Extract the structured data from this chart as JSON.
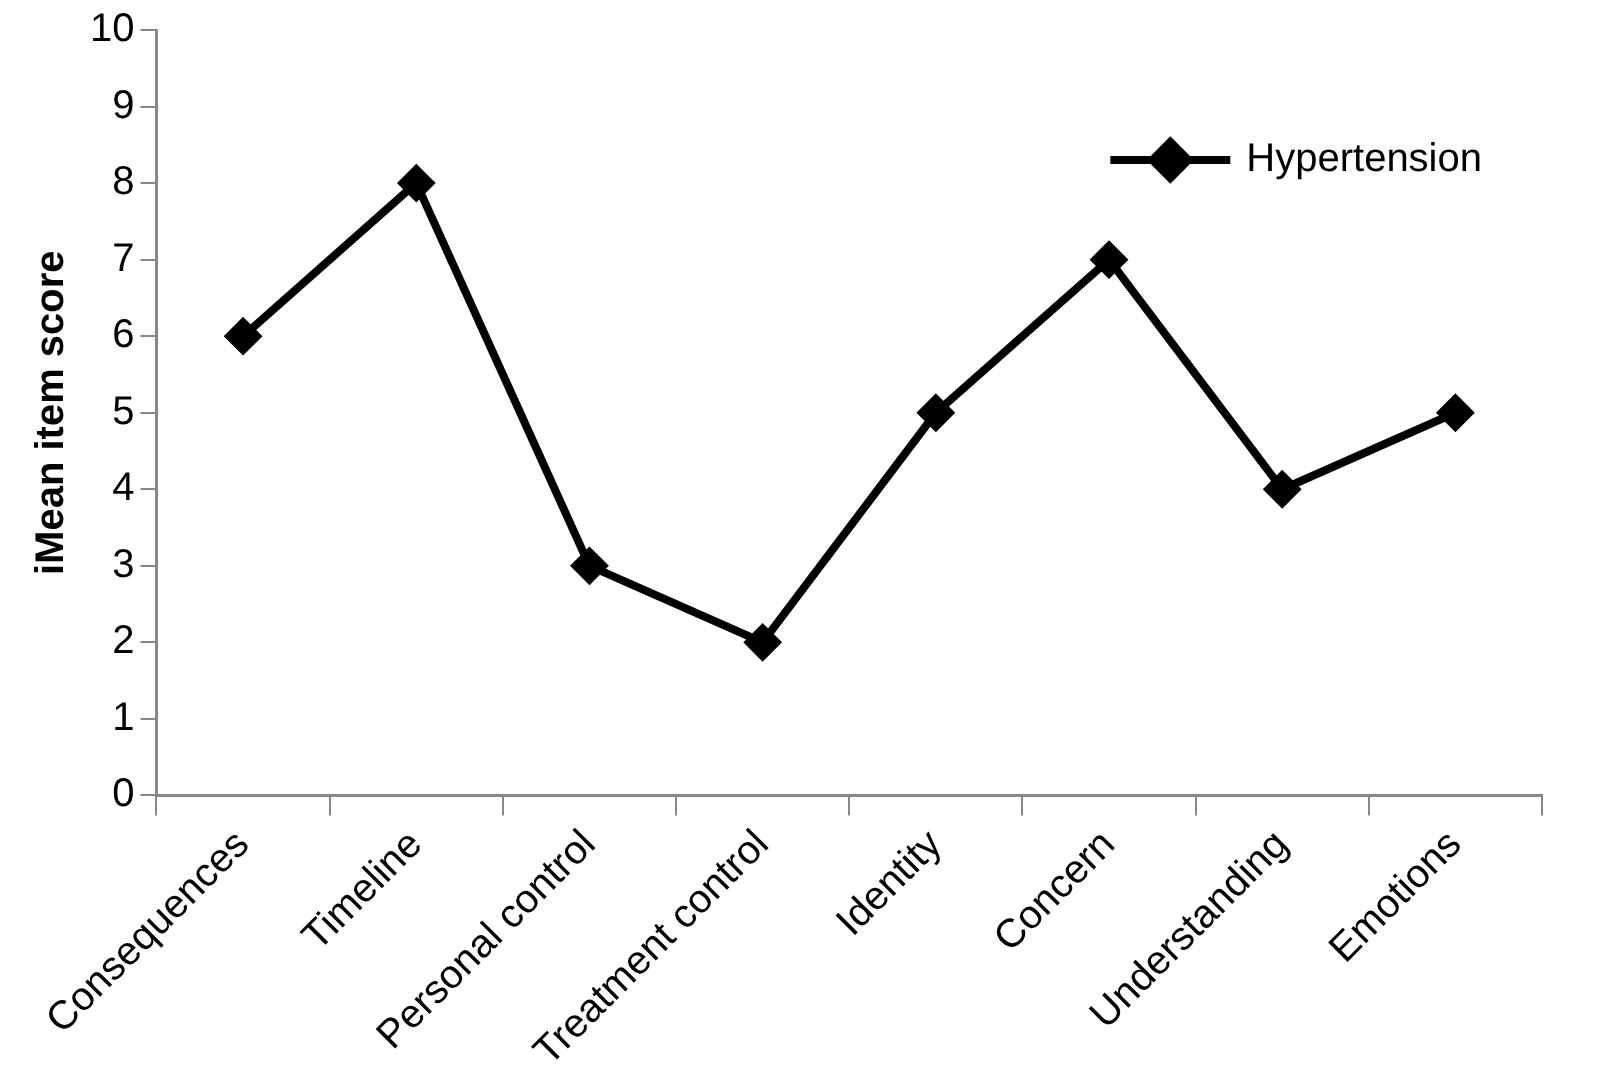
{
  "chart_data": {
    "type": "line",
    "ylabel": "iMean item score",
    "categories": [
      "Consequences",
      "Timeline",
      "Personal control",
      "Treatment control",
      "Identity",
      "Concern",
      "Understanding",
      "Emotions"
    ],
    "series": [
      {
        "name": "Hypertension",
        "color": "#000000",
        "values": [
          6,
          8,
          3,
          2,
          5,
          7,
          4,
          5
        ]
      }
    ],
    "ylim": [
      0,
      10
    ],
    "yticks": [
      0,
      1,
      2,
      3,
      4,
      5,
      6,
      7,
      8,
      9,
      10
    ],
    "grid": false,
    "legend": "top right",
    "marker": "diamond",
    "line_style": "solid"
  }
}
